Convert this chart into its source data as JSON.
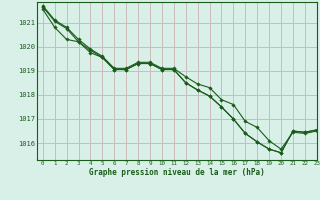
{
  "title": "Graphe pression niveau de la mer (hPa)",
  "background_color": "#d8f0e8",
  "grid_color": "#ccbbbb",
  "line_color": "#1a5c1a",
  "marker_color": "#1a5c1a",
  "xlim": [
    -0.5,
    23
  ],
  "ylim": [
    1015.3,
    1021.85
  ],
  "xticks": [
    0,
    1,
    2,
    3,
    4,
    5,
    6,
    7,
    8,
    9,
    10,
    11,
    12,
    13,
    14,
    15,
    16,
    17,
    18,
    19,
    20,
    21,
    22,
    23
  ],
  "yticks": [
    1016,
    1017,
    1018,
    1019,
    1020,
    1021
  ],
  "series1": [
    1021.7,
    1021.1,
    1020.8,
    1020.3,
    1019.9,
    1019.6,
    1019.1,
    1019.1,
    1019.35,
    1019.35,
    1019.1,
    1019.1,
    1018.75,
    1018.45,
    1018.3,
    1017.8,
    1017.6,
    1016.9,
    1016.65,
    1016.1,
    1015.75,
    1016.45,
    1016.4,
    1016.5
  ],
  "series2": [
    1021.65,
    1021.05,
    1020.75,
    1020.2,
    1019.85,
    1019.55,
    1019.05,
    1019.05,
    1019.3,
    1019.3,
    1019.05,
    1019.05,
    1018.5,
    1018.2,
    1017.95,
    1017.5,
    1017.0,
    1016.4,
    1016.05,
    1015.75,
    1015.6,
    1016.5,
    1016.45,
    1016.55
  ],
  "series3": [
    1021.55,
    1020.8,
    1020.3,
    1020.2,
    1019.75,
    1019.55,
    1019.05,
    1019.05,
    1019.3,
    1019.3,
    1019.05,
    1019.05,
    1018.5,
    1018.2,
    1017.95,
    1017.5,
    1017.0,
    1016.4,
    1016.05,
    1015.75,
    1015.6,
    1016.5,
    1016.45,
    1016.55
  ]
}
